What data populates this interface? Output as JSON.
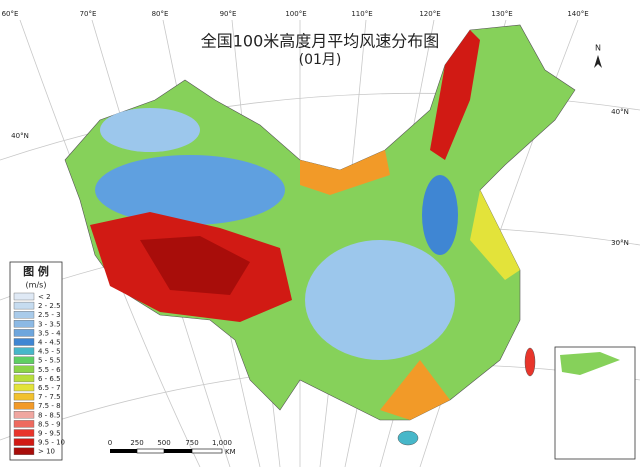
{
  "title": "全国100米高度月平均风速分布图",
  "subtitle": "(01月)",
  "graticule": {
    "lon_labels": [
      "60°E",
      "70°E",
      "80°E",
      "90°E",
      "100°E",
      "110°E",
      "120°E",
      "130°E",
      "140°E"
    ],
    "lat_labels": [
      "40°N",
      "40°N",
      "30°N"
    ]
  },
  "north_label": "N",
  "legend": {
    "title": "图 例",
    "unit": "(m/s)",
    "items": [
      {
        "label": "< 2",
        "color": "#dfe9f5"
      },
      {
        "label": "2 - 2.5",
        "color": "#c6dcf0"
      },
      {
        "label": "2.5 - 3",
        "color": "#a9cbea"
      },
      {
        "label": "3 - 3.5",
        "color": "#8cb9e4"
      },
      {
        "label": "3.5 - 4",
        "color": "#6ea6dd"
      },
      {
        "label": "4 - 4.5",
        "color": "#3f86d3"
      },
      {
        "label": "4.5 - 5",
        "color": "#47b7c9"
      },
      {
        "label": "5 - 5.5",
        "color": "#5fcf63"
      },
      {
        "label": "5.5 - 6",
        "color": "#8bd448"
      },
      {
        "label": "6 - 6.5",
        "color": "#b8de3c"
      },
      {
        "label": "6.5 - 7",
        "color": "#e3e33a"
      },
      {
        "label": "7 - 7.5",
        "color": "#f2c12e"
      },
      {
        "label": "7.5 - 8",
        "color": "#f29a28"
      },
      {
        "label": "8 - 8.5",
        "color": "#f0a6a0"
      },
      {
        "label": "8.5 - 9",
        "color": "#ee6a5f"
      },
      {
        "label": "9 - 9.5",
        "color": "#e8352b"
      },
      {
        "label": "9.5 - 10",
        "color": "#d11a14"
      },
      {
        "label": "> 10",
        "color": "#a80d0a"
      }
    ]
  },
  "scale_bar": {
    "labels": [
      "0",
      "250",
      "500",
      "750",
      "1,000"
    ],
    "unit": "KM"
  }
}
